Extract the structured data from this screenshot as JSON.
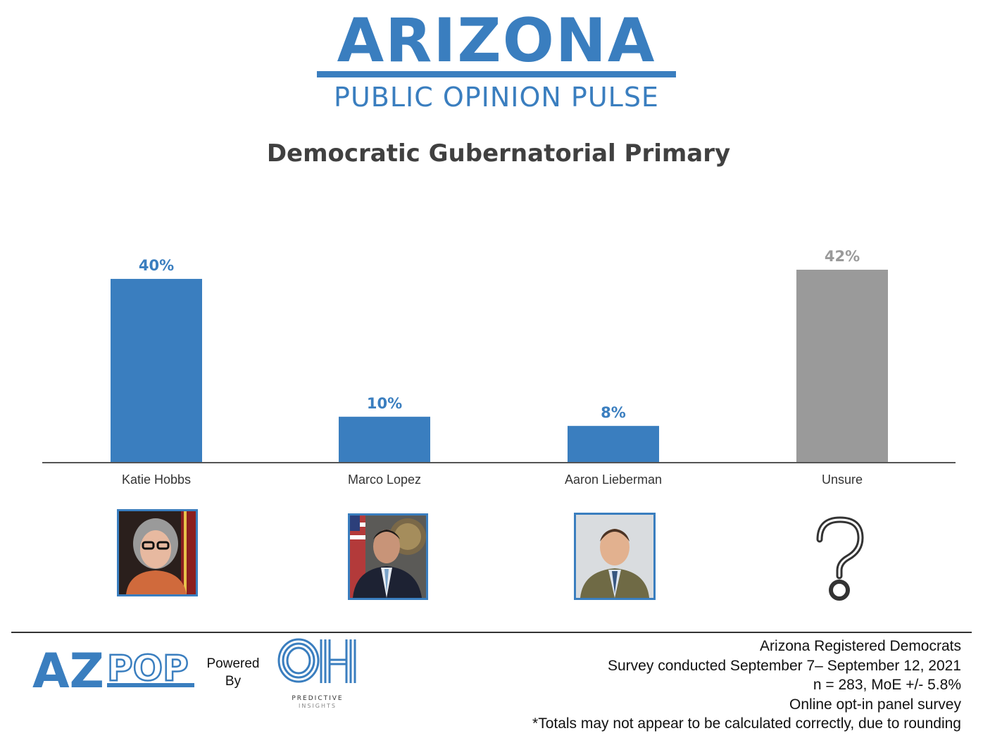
{
  "header": {
    "brand_title": "ARIZONA",
    "brand_subtitle": "PUBLIC OPINION PULSE"
  },
  "colors": {
    "brand_blue": "#3a7ebf",
    "unsure_gray": "#9a9a9a",
    "title_gray": "#404040",
    "axis": "#555555"
  },
  "chart_data": {
    "type": "bar",
    "title": "Democratic Gubernatorial Primary",
    "categories": [
      "Katie Hobbs",
      "Marco Lopez",
      "Aaron Lieberman",
      "Unsure"
    ],
    "values": [
      40,
      10,
      8,
      42
    ],
    "data_labels": [
      "40%",
      "10%",
      "8%",
      "42%"
    ],
    "bar_colors": [
      "#3a7ebf",
      "#3a7ebf",
      "#3a7ebf",
      "#9a9a9a"
    ],
    "xlabel": "",
    "ylabel": "",
    "ylim": [
      0,
      42
    ],
    "grid": false,
    "legend": "none"
  },
  "candidate_images": [
    {
      "name": "photo-katie-hobbs-icon"
    },
    {
      "name": "photo-marco-lopez-icon"
    },
    {
      "name": "photo-aaron-lieberman-icon"
    },
    {
      "name": "question-mark-icon"
    }
  ],
  "footer": {
    "logo_text": "AZPOP",
    "powered_by": [
      "Powered",
      "By"
    ],
    "partner_logo_text": "OH",
    "partner_name": [
      "PREDICTIVE",
      "INSIGHTS"
    ],
    "notes": [
      "Arizona Registered Democrats",
      "Survey conducted September 7– September 12, 2021",
      "n = 283, MoE +/- 5.8%",
      "Online opt-in panel survey",
      "*Totals may not appear to be calculated correctly, due to rounding"
    ]
  }
}
